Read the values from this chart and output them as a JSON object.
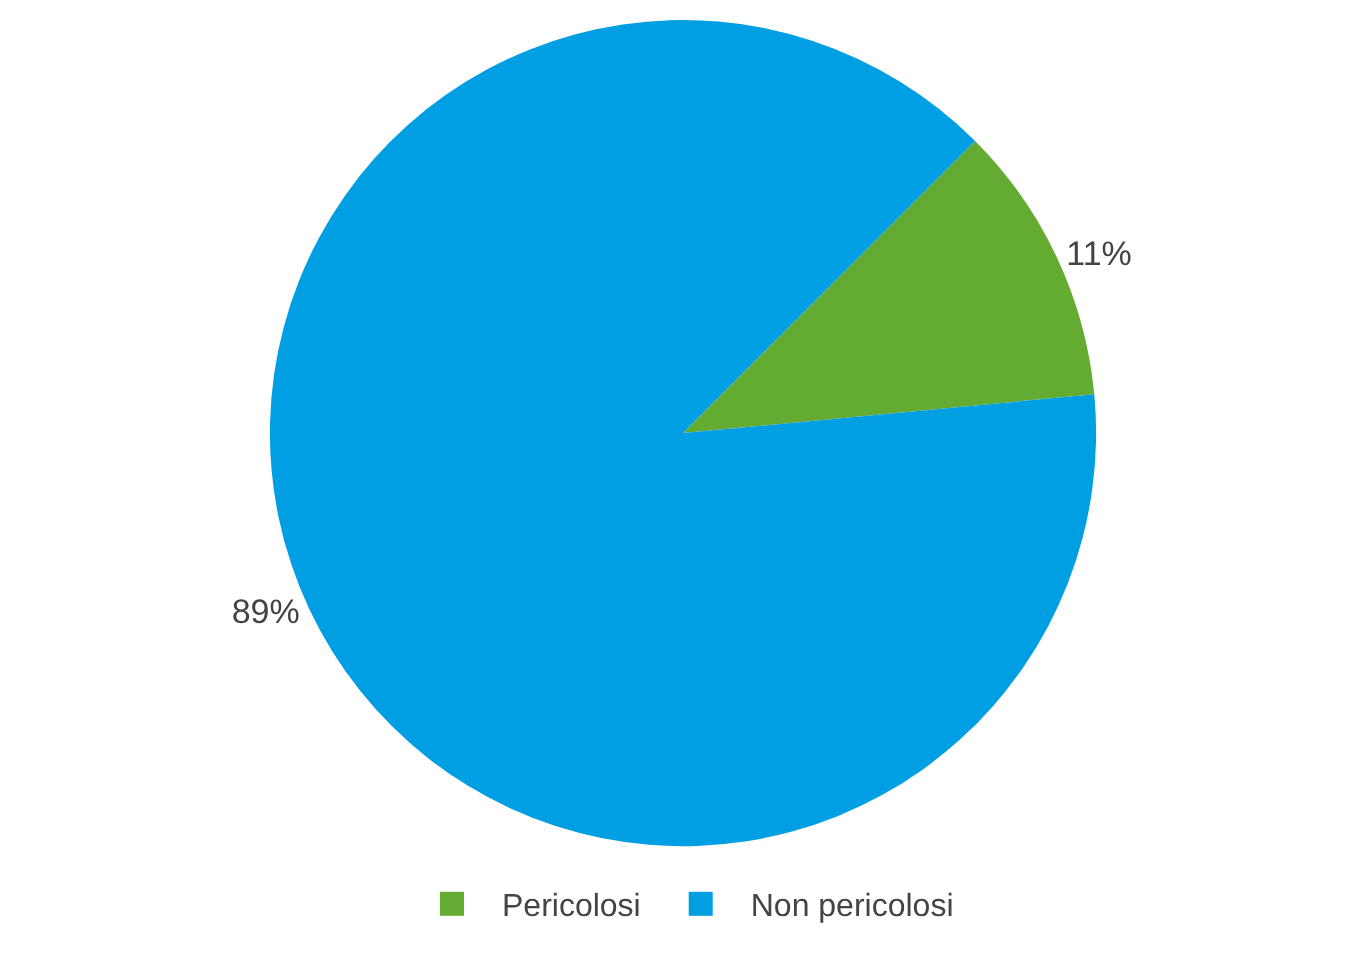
{
  "chart_data": {
    "type": "pie",
    "categories": [
      "Pericolosi",
      "Non pericolosi"
    ],
    "values": [
      11,
      89
    ],
    "colors": [
      "#63ab31",
      "#009fe3"
    ],
    "value_labels": [
      "11%",
      "89%"
    ],
    "legend": "bottom"
  }
}
